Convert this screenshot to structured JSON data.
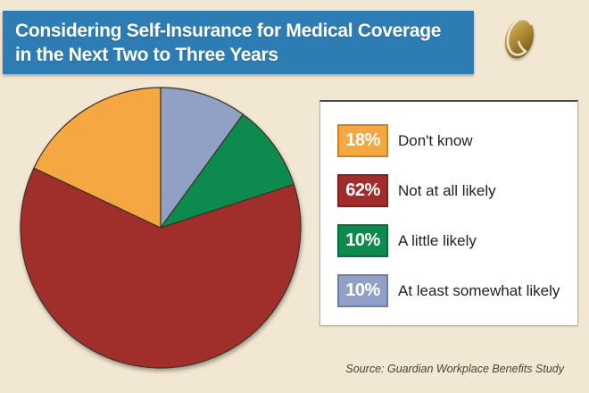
{
  "page": {
    "background_color": "#F2E7D2"
  },
  "header": {
    "title_lines": [
      "Considering Self-Insurance for Medical Coverage",
      "in the Next Two to Three Years"
    ],
    "bar_color": "#2E7CB4",
    "logo_name": "guardian-g-logo",
    "logo_color": "#A88432"
  },
  "chart_data": {
    "type": "pie",
    "title": "Considering Self-Insurance for Medical Coverage in the Next Two to Three Years",
    "unit": "%",
    "start_angle_deg": 0,
    "direction": "clockwise",
    "outline_color": "#3A332C",
    "slices": [
      {
        "label": "At least somewhat likely",
        "value": 10,
        "color": "#91A0C5",
        "border_color": "#6E7EA6"
      },
      {
        "label": "A little likely",
        "value": 10,
        "color": "#0E8A4E",
        "border_color": "#0A6B3C"
      },
      {
        "label": "Not at all likely",
        "value": 62,
        "color": "#A02D2B",
        "border_color": "#7E2120"
      },
      {
        "label": "Don't know",
        "value": 18,
        "color": "#F5A742",
        "border_color": "#C8842B"
      }
    ],
    "legend_order": [
      3,
      2,
      1,
      0
    ],
    "legend_position": "right"
  },
  "footer": {
    "source": "Source: Guardian Workplace Benefits Study"
  }
}
